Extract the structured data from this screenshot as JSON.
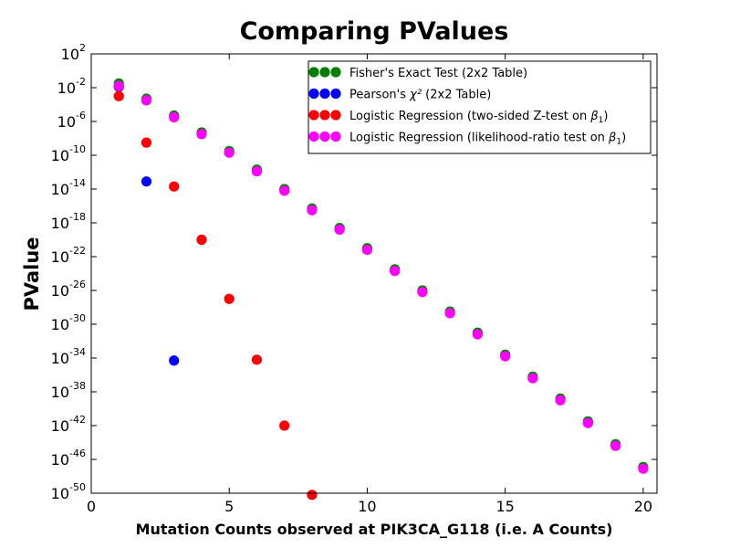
{
  "chart_data": {
    "type": "scatter",
    "title": "Comparing PValues",
    "xlabel": "Mutation Counts observed at PIK3CA_G118 (i.e. A Counts)",
    "ylabel": "PValue",
    "xlim": [
      0,
      20.5
    ],
    "ylim_exp": [
      -50,
      2
    ],
    "yscale": "log",
    "legend_position": "upper-right",
    "x_ticks": [
      {
        "value": 0,
        "label": "0"
      },
      {
        "value": 5,
        "label": "5"
      },
      {
        "value": 10,
        "label": "10"
      },
      {
        "value": 15,
        "label": "15"
      },
      {
        "value": 20,
        "label": "20"
      }
    ],
    "y_ticks": [
      {
        "exp": 2,
        "base": "10",
        "sup": "2"
      },
      {
        "exp": -2,
        "base": "10",
        "sup": "-2"
      },
      {
        "exp": -6,
        "base": "10",
        "sup": "-6"
      },
      {
        "exp": -10,
        "base": "10",
        "sup": "-10"
      },
      {
        "exp": -14,
        "base": "10",
        "sup": "-14"
      },
      {
        "exp": -18,
        "base": "10",
        "sup": "-18"
      },
      {
        "exp": -22,
        "base": "10",
        "sup": "-22"
      },
      {
        "exp": -26,
        "base": "10",
        "sup": "-26"
      },
      {
        "exp": -30,
        "base": "10",
        "sup": "-30"
      },
      {
        "exp": -34,
        "base": "10",
        "sup": "-34"
      },
      {
        "exp": -38,
        "base": "10",
        "sup": "-38"
      },
      {
        "exp": -42,
        "base": "10",
        "sup": "-42"
      },
      {
        "exp": -46,
        "base": "10",
        "sup": "-46"
      },
      {
        "exp": -50,
        "base": "10",
        "sup": "-50"
      }
    ],
    "series": [
      {
        "key": "fisher",
        "legend": {
          "pre": "Fisher's Exact Test (2x2 Table)",
          "sym": "",
          "sub": "",
          "post": ""
        },
        "color": "#008000",
        "points": [
          [
            1,
            -1.5
          ],
          [
            2,
            -3.3
          ],
          [
            3,
            -5.3
          ],
          [
            4,
            -7.3
          ],
          [
            5,
            -9.5
          ],
          [
            6,
            -11.7
          ],
          [
            7,
            -14.0
          ],
          [
            8,
            -16.3
          ],
          [
            9,
            -18.6
          ],
          [
            10,
            -21.0
          ],
          [
            11,
            -23.5
          ],
          [
            12,
            -26.0
          ],
          [
            13,
            -28.5
          ],
          [
            14,
            -31.0
          ],
          [
            15,
            -33.6
          ],
          [
            16,
            -36.2
          ],
          [
            17,
            -38.8
          ],
          [
            18,
            -41.5
          ],
          [
            19,
            -44.2
          ],
          [
            20,
            -46.9
          ]
        ]
      },
      {
        "key": "pearson",
        "legend": {
          "pre": "Pearson's ",
          "sym": "χ²",
          "sub": "",
          "post": " (2x2 Table)"
        },
        "color": "#0000ff",
        "points": [
          [
            1,
            -1.9
          ],
          [
            2,
            -13.1
          ],
          [
            3,
            -34.3
          ]
        ]
      },
      {
        "key": "logit_z",
        "legend": {
          "pre": "Logistic Regression (two-sided Z-test on ",
          "sym": "β",
          "sub": "1",
          "post": ")"
        },
        "color": "#ff0000",
        "points": [
          [
            1,
            -3.0
          ],
          [
            2,
            -8.5
          ],
          [
            3,
            -13.7
          ],
          [
            4,
            -20.0
          ],
          [
            5,
            -27.0
          ],
          [
            6,
            -34.2
          ],
          [
            7,
            -42.0
          ],
          [
            8,
            -50.2
          ]
        ]
      },
      {
        "key": "logit_lr",
        "legend": {
          "pre": "Logistic Regression (likelihood-ratio test on ",
          "sym": "β",
          "sub": "1",
          "post": ")"
        },
        "color": "#ff00ff",
        "points": [
          [
            1,
            -1.8
          ],
          [
            2,
            -3.5
          ],
          [
            3,
            -5.5
          ],
          [
            4,
            -7.5
          ],
          [
            5,
            -9.7
          ],
          [
            6,
            -11.9
          ],
          [
            7,
            -14.2
          ],
          [
            8,
            -16.5
          ],
          [
            9,
            -18.8
          ],
          [
            10,
            -21.2
          ],
          [
            11,
            -23.7
          ],
          [
            12,
            -26.2
          ],
          [
            13,
            -28.7
          ],
          [
            14,
            -31.2
          ],
          [
            15,
            -33.8
          ],
          [
            16,
            -36.4
          ],
          [
            17,
            -39.0
          ],
          [
            18,
            -41.7
          ],
          [
            19,
            -44.4
          ],
          [
            20,
            -47.1
          ]
        ]
      }
    ]
  }
}
